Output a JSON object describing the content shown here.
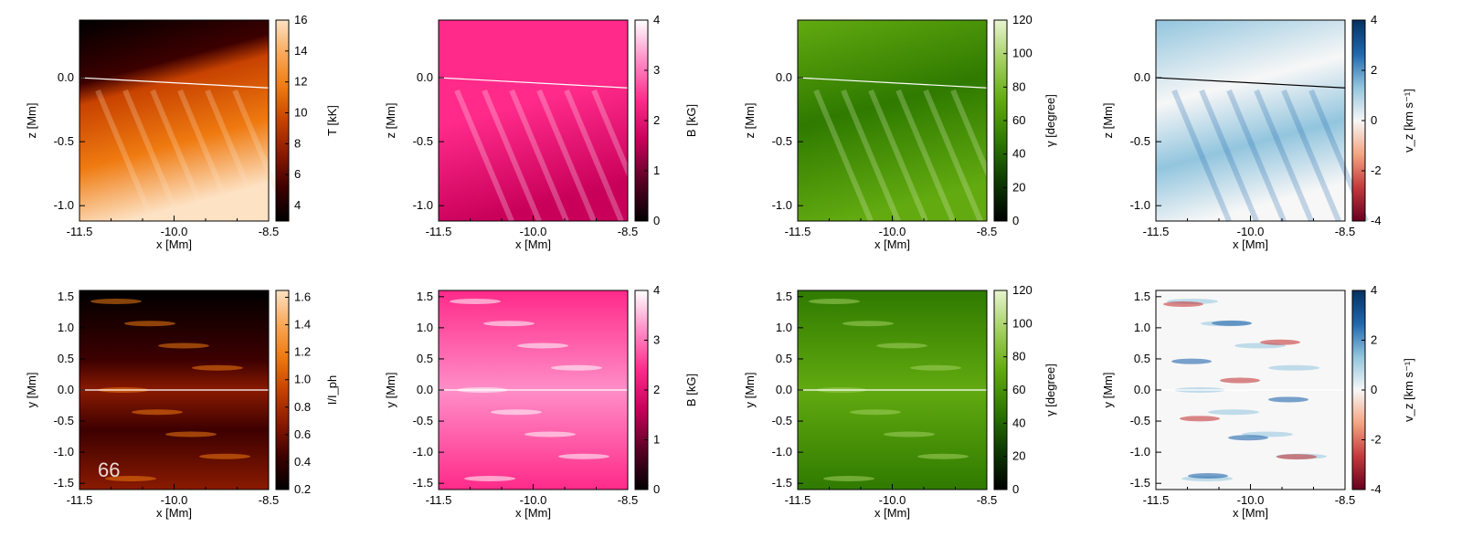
{
  "chart_data": [
    {
      "type": "heatmap",
      "row": "top",
      "xlabel": "x [Mm]",
      "ylabel": "z [Mm]",
      "xlim": [
        -11.5,
        -8.5
      ],
      "ylim": [
        -1.12,
        0.45
      ],
      "xticks": [
        "-11.5",
        "-10.0",
        "-8.5"
      ],
      "yticks": [
        "-1.0",
        "-0.5",
        "0.0"
      ],
      "yticks_vals": [
        -1.0,
        -0.5,
        0.0
      ],
      "colorbar": {
        "label": "T [kK]",
        "range": [
          3,
          16
        ],
        "ticks": [
          "4",
          "6",
          "8",
          "10",
          "12",
          "14",
          "16"
        ],
        "ticks_vals": [
          4,
          6,
          8,
          10,
          12,
          14,
          16
        ],
        "colors": [
          "#000000",
          "#3d0000",
          "#8a1a00",
          "#c74200",
          "#ef7a10",
          "#f9a95a",
          "#fde2c4"
        ]
      }
    },
    {
      "type": "heatmap",
      "row": "top",
      "xlabel": "x [Mm]",
      "ylabel": "z [Mm]",
      "xlim": [
        -11.5,
        -8.5
      ],
      "ylim": [
        -1.12,
        0.45
      ],
      "xticks": [
        "-11.5",
        "-10.0",
        "-8.5"
      ],
      "yticks": [
        "-1.0",
        "-0.5",
        "0.0"
      ],
      "yticks_vals": [
        -1.0,
        -0.5,
        0.0
      ],
      "colorbar": {
        "label": "B [kG]",
        "range": [
          0,
          4
        ],
        "ticks": [
          "0",
          "1",
          "2",
          "3",
          "4"
        ],
        "ticks_vals": [
          0,
          1,
          2,
          3,
          4
        ],
        "colors": [
          "#000000",
          "#5a0024",
          "#c8005a",
          "#ff2a8a",
          "#ff8ec7",
          "#ffffff"
        ]
      }
    },
    {
      "type": "heatmap",
      "row": "top",
      "xlabel": "x [Mm]",
      "ylabel": "z [Mm]",
      "xlim": [
        -11.5,
        -8.5
      ],
      "ylim": [
        -1.12,
        0.45
      ],
      "xticks": [
        "-11.5",
        "-10.0",
        "-8.5"
      ],
      "yticks": [
        "-1.0",
        "-0.5",
        "0.0"
      ],
      "yticks_vals": [
        -1.0,
        -0.5,
        0.0
      ],
      "colorbar": {
        "label": "γ [degree]",
        "range": [
          0,
          120
        ],
        "ticks": [
          "0",
          "20",
          "40",
          "60",
          "80",
          "100",
          "120"
        ],
        "ticks_vals": [
          0,
          20,
          40,
          60,
          80,
          100,
          120
        ],
        "colors": [
          "#000000",
          "#0d3a00",
          "#2f7a00",
          "#62aa10",
          "#a3d060",
          "#e8f4d0"
        ]
      }
    },
    {
      "type": "heatmap",
      "row": "top",
      "xlabel": "x [Mm]",
      "ylabel": "z [Mm]",
      "xlim": [
        -11.5,
        -8.5
      ],
      "ylim": [
        -1.12,
        0.45
      ],
      "xticks": [
        "-11.5",
        "-10.0",
        "-8.5"
      ],
      "yticks": [
        "-1.0",
        "-0.5",
        "0.0"
      ],
      "yticks_vals": [
        -1.0,
        -0.5,
        0.0
      ],
      "colorbar": {
        "label": "v_z [km s⁻¹]",
        "range": [
          -4,
          4
        ],
        "ticks": [
          "-4",
          "-2",
          "0",
          "2",
          "4"
        ],
        "ticks_vals": [
          -4,
          -2,
          0,
          2,
          4
        ],
        "colors": [
          "#67001f",
          "#c5383c",
          "#f4a582",
          "#f7f7f7",
          "#92c5de",
          "#2166ac",
          "#053061"
        ]
      }
    },
    {
      "type": "heatmap",
      "row": "bottom",
      "xlabel": "x [Mm]",
      "ylabel": "y [Mm]",
      "xlim": [
        -11.5,
        -8.5
      ],
      "ylim": [
        -1.6,
        1.6
      ],
      "xticks": [
        "-11.5",
        "-10.0",
        "-8.5"
      ],
      "yticks": [
        "-1.5",
        "-1.0",
        "-0.5",
        "0.0",
        "0.5",
        "1.0",
        "1.5"
      ],
      "yticks_vals": [
        -1.5,
        -1.0,
        -0.5,
        0.0,
        0.5,
        1.0,
        1.5
      ],
      "overlay_text": "66",
      "colorbar": {
        "label": "I/I_ph",
        "range": [
          0.2,
          1.65
        ],
        "ticks": [
          "0.2",
          "0.4",
          "0.6",
          "0.8",
          "1.0",
          "1.2",
          "1.4",
          "1.6"
        ],
        "ticks_vals": [
          0.2,
          0.4,
          0.6,
          0.8,
          1.0,
          1.2,
          1.4,
          1.6
        ],
        "colors": [
          "#000000",
          "#3d0000",
          "#8a1a00",
          "#c74200",
          "#ef7a10",
          "#f9a95a",
          "#fde2c4"
        ]
      }
    },
    {
      "type": "heatmap",
      "row": "bottom",
      "xlabel": "x [Mm]",
      "ylabel": "y [Mm]",
      "xlim": [
        -11.5,
        -8.5
      ],
      "ylim": [
        -1.6,
        1.6
      ],
      "xticks": [
        "-11.5",
        "-10.0",
        "-8.5"
      ],
      "yticks": [
        "-1.5",
        "-1.0",
        "-0.5",
        "0.0",
        "0.5",
        "1.0",
        "1.5"
      ],
      "yticks_vals": [
        -1.5,
        -1.0,
        -0.5,
        0.0,
        0.5,
        1.0,
        1.5
      ],
      "colorbar": {
        "label": "B [kG]",
        "range": [
          0,
          4
        ],
        "ticks": [
          "0",
          "1",
          "2",
          "3",
          "4"
        ],
        "ticks_vals": [
          0,
          1,
          2,
          3,
          4
        ],
        "colors": [
          "#000000",
          "#5a0024",
          "#c8005a",
          "#ff2a8a",
          "#ff8ec7",
          "#ffffff"
        ]
      }
    },
    {
      "type": "heatmap",
      "row": "bottom",
      "xlabel": "x [Mm]",
      "ylabel": "y [Mm]",
      "xlim": [
        -11.5,
        -8.5
      ],
      "ylim": [
        -1.6,
        1.6
      ],
      "xticks": [
        "-11.5",
        "-10.0",
        "-8.5"
      ],
      "yticks": [
        "-1.5",
        "-1.0",
        "-0.5",
        "0.0",
        "0.5",
        "1.0",
        "1.5"
      ],
      "yticks_vals": [
        -1.5,
        -1.0,
        -0.5,
        0.0,
        0.5,
        1.0,
        1.5
      ],
      "colorbar": {
        "label": "γ [degree]",
        "range": [
          0,
          120
        ],
        "ticks": [
          "0",
          "20",
          "40",
          "60",
          "80",
          "100",
          "120"
        ],
        "ticks_vals": [
          0,
          20,
          40,
          60,
          80,
          100,
          120
        ],
        "colors": [
          "#000000",
          "#0d3a00",
          "#2f7a00",
          "#62aa10",
          "#a3d060",
          "#e8f4d0"
        ]
      }
    },
    {
      "type": "heatmap",
      "row": "bottom",
      "xlabel": "x [Mm]",
      "ylabel": "y [Mm]",
      "xlim": [
        -11.5,
        -8.5
      ],
      "ylim": [
        -1.6,
        1.6
      ],
      "xticks": [
        "-11.5",
        "-10.0",
        "-8.5"
      ],
      "yticks": [
        "-1.5",
        "-1.0",
        "-0.5",
        "0.0",
        "0.5",
        "1.0",
        "1.5"
      ],
      "yticks_vals": [
        -1.5,
        -1.0,
        -0.5,
        0.0,
        0.5,
        1.0,
        1.5
      ],
      "colorbar": {
        "label": "v_z [km s⁻¹]",
        "range": [
          -4,
          4
        ],
        "ticks": [
          "-4",
          "-2",
          "0",
          "2",
          "4"
        ],
        "ticks_vals": [
          -4,
          -2,
          0,
          2,
          4
        ],
        "colors": [
          "#67001f",
          "#c5383c",
          "#f4a582",
          "#f7f7f7",
          "#92c5de",
          "#2166ac",
          "#053061"
        ]
      }
    }
  ]
}
